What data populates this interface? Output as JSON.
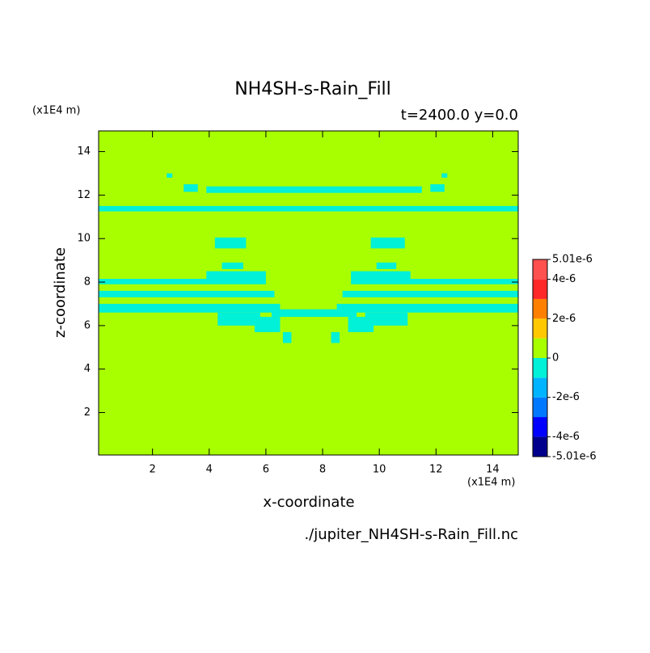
{
  "chart_data": {
    "type": "contour",
    "title": "NH4SH-s-Rain_Fill",
    "subtitle": "t=2400.0 y=0.0",
    "x_label": "x-coordinate",
    "y_label": "z-coordinate",
    "x_unit": "(x1E4 m)",
    "y_unit": "(x1E4 m)",
    "source": "./jupiter_NH4SH-s-Rain_Fill.nc",
    "xlim": [
      0.1,
      14.9
    ],
    "ylim": [
      0.05,
      14.95
    ],
    "xticks": [
      2,
      4,
      6,
      8,
      10,
      12,
      14
    ],
    "yticks": [
      2,
      4,
      6,
      8,
      10,
      12,
      14
    ],
    "background_value": 0,
    "regions": [
      {
        "x": [
          0.1,
          14.9
        ],
        "z": [
          11.25,
          11.5
        ],
        "value": -5e-07
      },
      {
        "x": [
          3.9,
          11.5
        ],
        "z": [
          12.1,
          12.4
        ],
        "value": -5e-07
      },
      {
        "x": [
          3.1,
          3.6
        ],
        "z": [
          12.15,
          12.5
        ],
        "value": -5e-07
      },
      {
        "x": [
          11.8,
          12.3
        ],
        "z": [
          12.15,
          12.5
        ],
        "value": -5e-07
      },
      {
        "x": [
          2.5,
          2.7
        ],
        "z": [
          12.8,
          13.0
        ],
        "value": -5e-07
      },
      {
        "x": [
          12.2,
          12.4
        ],
        "z": [
          12.8,
          13.0
        ],
        "value": -5e-07
      },
      {
        "x": [
          4.2,
          5.3
        ],
        "z": [
          9.55,
          10.05
        ],
        "value": -5e-07
      },
      {
        "x": [
          9.7,
          10.9
        ],
        "z": [
          9.55,
          10.05
        ],
        "value": -5e-07
      },
      {
        "x": [
          4.45,
          5.2
        ],
        "z": [
          8.6,
          8.9
        ],
        "value": -5e-07
      },
      {
        "x": [
          9.9,
          10.6
        ],
        "z": [
          8.6,
          8.9
        ],
        "value": -5e-07
      },
      {
        "x": [
          3.9,
          6.0
        ],
        "z": [
          8.15,
          8.5
        ],
        "value": -5e-07
      },
      {
        "x": [
          9.0,
          11.1
        ],
        "z": [
          8.15,
          8.5
        ],
        "value": -5e-07
      },
      {
        "x": [
          0.1,
          6.0
        ],
        "z": [
          7.9,
          8.15
        ],
        "value": -5e-07
      },
      {
        "x": [
          0.1,
          6.3
        ],
        "z": [
          7.3,
          7.6
        ],
        "value": -5e-07
      },
      {
        "x": [
          0.1,
          6.5
        ],
        "z": [
          6.6,
          7.0
        ],
        "value": -5e-07
      },
      {
        "x": [
          9.0,
          14.9
        ],
        "z": [
          7.9,
          8.15
        ],
        "value": -5e-07
      },
      {
        "x": [
          8.7,
          14.9
        ],
        "z": [
          7.3,
          7.6
        ],
        "value": -5e-07
      },
      {
        "x": [
          8.5,
          14.9
        ],
        "z": [
          6.6,
          7.0
        ],
        "value": -5e-07
      },
      {
        "x": [
          4.3,
          5.8
        ],
        "z": [
          6.0,
          6.6
        ],
        "value": -5e-07
      },
      {
        "x": [
          9.5,
          11.0
        ],
        "z": [
          6.0,
          6.6
        ],
        "value": -5e-07
      },
      {
        "x": [
          6.2,
          9.2
        ],
        "z": [
          6.4,
          6.75
        ],
        "value": -5e-07
      },
      {
        "x": [
          5.6,
          6.5
        ],
        "z": [
          5.7,
          6.4
        ],
        "value": -5e-07
      },
      {
        "x": [
          8.9,
          9.8
        ],
        "z": [
          5.7,
          6.4
        ],
        "value": -5e-07
      },
      {
        "x": [
          6.6,
          6.9
        ],
        "z": [
          5.2,
          5.7
        ],
        "value": -5e-07
      },
      {
        "x": [
          8.3,
          8.6
        ],
        "z": [
          5.2,
          5.7
        ],
        "value": -5e-07
      }
    ],
    "colorbar": {
      "levels": [
        -5.01e-06,
        -4e-06,
        -3e-06,
        -2e-06,
        -1e-06,
        0,
        1e-06,
        2e-06,
        3e-06,
        4e-06,
        5.01e-06
      ],
      "colors": [
        "#00008c",
        "#0000ff",
        "#0078ff",
        "#00b4ff",
        "#00f0d8",
        "#a8ff00",
        "#ffc800",
        "#ff8000",
        "#ff2828",
        "#ff5050"
      ],
      "ticks": [
        {
          "value": -5.01e-06,
          "label": "-5.01e-6"
        },
        {
          "value": -4e-06,
          "label": "-4e-6"
        },
        {
          "value": -2e-06,
          "label": "-2e-6"
        },
        0,
        {
          "value": 2e-06,
          "label": "2e-6"
        },
        {
          "value": 4e-06,
          "label": "4e-6"
        },
        {
          "value": 5.01e-06,
          "label": "5.01e-6"
        }
      ]
    }
  }
}
